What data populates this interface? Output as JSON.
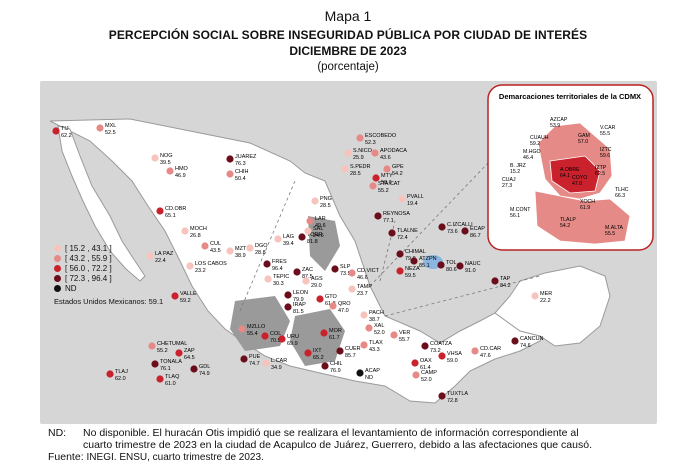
{
  "header": {
    "map_label": "Mapa 1",
    "title": "Percepción social sobre inseguridad pública por ciudad de interés",
    "date": "diciembre de 2023",
    "unit": "(porcentaje)"
  },
  "legend": {
    "items": [
      {
        "label": "[ 15.2 , 43.1 ]",
        "color": "#f6c4bd"
      },
      {
        "label": "[ 43.2 , 55.9 ]",
        "color": "#e58a86"
      },
      {
        "label": "[ 56.0 , 72.2 ]",
        "color": "#c9222d"
      },
      {
        "label": "[ 72.3 , 96.4 ]",
        "color": "#6b0e1b"
      },
      {
        "label": "ND",
        "color": "#111111"
      }
    ],
    "national": "Estados Unidos Mexicanos: 59.1"
  },
  "inset": {
    "title": "Demarcaciones territoriales de la CDMX",
    "areas": [
      {
        "code": "AZCAP",
        "value": "53.9"
      },
      {
        "code": "GAM",
        "value": "57.0"
      },
      {
        "code": "V.CAR",
        "value": "55.5"
      },
      {
        "code": "CUAUH",
        "value": "59.2"
      },
      {
        "code": "M.HGO",
        "value": "46.4"
      },
      {
        "code": "IZTC",
        "value": "59.6"
      },
      {
        "code": "B. JRZ",
        "value": "15.2"
      },
      {
        "code": "A.OBRE",
        "value": "64.1"
      },
      {
        "code": "IZTP",
        "value": "62.5"
      },
      {
        "code": "COYO",
        "value": "47.0"
      },
      {
        "code": "CUAJ",
        "value": "27.3"
      },
      {
        "code": "TLHC",
        "value": "66.3"
      },
      {
        "code": "XOCH",
        "value": "61.9"
      },
      {
        "code": "M.CONT",
        "value": "56.1"
      },
      {
        "code": "TLALP",
        "value": "54.2"
      },
      {
        "code": "M.ALTA",
        "value": "55.5"
      }
    ]
  },
  "cities": [
    {
      "code": "TIJ",
      "value": "62.2",
      "color": "#c9222d"
    },
    {
      "code": "MXL",
      "value": "52.5",
      "color": "#e58a86"
    },
    {
      "code": "NOG",
      "value": "39.5",
      "color": "#f6c4bd"
    },
    {
      "code": "HMO",
      "value": "46.9",
      "color": "#e58a86"
    },
    {
      "code": "JUAREZ",
      "value": "76.3",
      "color": "#6b0e1b"
    },
    {
      "code": "CHIH",
      "value": "50.4",
      "color": "#e58a86"
    },
    {
      "code": "CD.OBR",
      "value": "65.1",
      "color": "#c9222d"
    },
    {
      "code": "MOCH",
      "value": "26.8",
      "color": "#f6c4bd"
    },
    {
      "code": "CUL",
      "value": "43.5",
      "color": "#e58a86"
    },
    {
      "code": "LA PAZ",
      "value": "22.4",
      "color": "#f6c4bd"
    },
    {
      "code": "LOS CABOS",
      "value": "23.2",
      "color": "#f6c4bd"
    },
    {
      "code": "MZT",
      "value": "38.9",
      "color": "#f6c4bd"
    },
    {
      "code": "DGO",
      "value": "28.8",
      "color": "#f6c4bd"
    },
    {
      "code": "LAG",
      "value": "39.4",
      "color": "#f6c4bd"
    },
    {
      "code": "TORR",
      "value": "81.8",
      "color": "#6b0e1b"
    },
    {
      "code": "PNG",
      "value": "28.5",
      "color": "#f6c4bd"
    },
    {
      "code": "ESCOBEDO",
      "value": "52.3",
      "color": "#e58a86"
    },
    {
      "code": "S.NICO",
      "value": "25.9",
      "color": "#f6c4bd"
    },
    {
      "code": "APODACA",
      "value": "43.6",
      "color": "#e58a86"
    },
    {
      "code": "S.PEDR",
      "value": "28.5",
      "color": "#f6c4bd"
    },
    {
      "code": "GPE",
      "value": "54.2",
      "color": "#e58a86"
    },
    {
      "code": "MTY",
      "value": "58.6",
      "color": "#c9222d"
    },
    {
      "code": "STA.CAT",
      "value": "55.2",
      "color": "#e58a86"
    },
    {
      "code": "LAR",
      "value": "49.6",
      "color": "#e58a86"
    },
    {
      "code": "REYNOSA",
      "value": "77.1",
      "color": "#6b0e1b"
    },
    {
      "code": "SAL",
      "value": "24.6",
      "color": "#f6c4bd"
    },
    {
      "code": "FRES",
      "value": "96.4",
      "color": "#6b0e1b"
    },
    {
      "code": "ZAC",
      "value": "87.5",
      "color": "#6b0e1b"
    },
    {
      "code": "TEPIC",
      "value": "30.3",
      "color": "#f6c4bd"
    },
    {
      "code": "AGS",
      "value": "29.0",
      "color": "#f6c4bd"
    },
    {
      "code": "SLP",
      "value": "73.9",
      "color": "#6b0e1b"
    },
    {
      "code": "CD.VICT",
      "value": "46.6",
      "color": "#e58a86"
    },
    {
      "code": "TAMP",
      "value": "23.7",
      "color": "#f6c4bd"
    },
    {
      "code": "LEON",
      "value": "79.9",
      "color": "#6b0e1b"
    },
    {
      "code": "GTO",
      "value": "61.8",
      "color": "#c9222d"
    },
    {
      "code": "IRAP",
      "value": "81.5",
      "color": "#6b0e1b"
    },
    {
      "code": "QRO",
      "value": "47.0",
      "color": "#e58a86"
    },
    {
      "code": "PACH",
      "value": "38.7",
      "color": "#f6c4bd"
    },
    {
      "code": "XAL",
      "value": "52.0",
      "color": "#e58a86"
    },
    {
      "code": "VER",
      "value": "55.7",
      "color": "#e58a86"
    },
    {
      "code": "MZLLO",
      "value": "55.4",
      "color": "#e58a86"
    },
    {
      "code": "COL",
      "value": "70.5",
      "color": "#c9222d"
    },
    {
      "code": "URU",
      "value": "69.9",
      "color": "#c9222d"
    },
    {
      "code": "MOR",
      "value": "61.7",
      "color": "#c9222d"
    },
    {
      "code": "CUER",
      "value": "85.7",
      "color": "#6b0e1b"
    },
    {
      "code": "TLAX",
      "value": "43.3",
      "color": "#e58a86"
    },
    {
      "code": "PUE",
      "value": "74.7",
      "color": "#6b0e1b"
    },
    {
      "code": "L.CAR",
      "value": "34.9",
      "color": "#f6c4bd"
    },
    {
      "code": "IXT",
      "value": "65.2",
      "color": "#c9222d"
    },
    {
      "code": "CHIL",
      "value": "76.9",
      "color": "#6b0e1b"
    },
    {
      "code": "ACAP",
      "value": "ND",
      "color": "#111111"
    },
    {
      "code": "OAX",
      "value": "61.4",
      "color": "#c9222d"
    },
    {
      "code": "COATZA",
      "value": "73.2",
      "color": "#6b0e1b"
    },
    {
      "code": "VHSA",
      "value": "59.0",
      "color": "#c9222d"
    },
    {
      "code": "CD.CAR",
      "value": "47.6",
      "color": "#e58a86"
    },
    {
      "code": "CAMP",
      "value": "52.0",
      "color": "#e58a86"
    },
    {
      "code": "TUXTLA",
      "value": "72.8",
      "color": "#6b0e1b"
    },
    {
      "code": "TAP",
      "value": "84.2",
      "color": "#6b0e1b"
    },
    {
      "code": "MER",
      "value": "22.2",
      "color": "#f6c4bd"
    },
    {
      "code": "CANCUN",
      "value": "74.6",
      "color": "#6b0e1b"
    },
    {
      "code": "CHETUMAL",
      "value": "55.2",
      "color": "#e58a86"
    },
    {
      "code": "ZAP",
      "value": "64.5",
      "color": "#c9222d"
    },
    {
      "code": "GDL",
      "value": "74.9",
      "color": "#6b0e1b"
    },
    {
      "code": "TONALA",
      "value": "76.1",
      "color": "#6b0e1b"
    },
    {
      "code": "TLAQ",
      "value": "61.0",
      "color": "#c9222d"
    },
    {
      "code": "TLAJ",
      "value": "62.0",
      "color": "#c9222d"
    },
    {
      "code": "PVALL",
      "value": "19.4",
      "color": "#f6c4bd"
    },
    {
      "code": "TLALNE",
      "value": "72.4",
      "color": "#6b0e1b"
    },
    {
      "code": "C.IZCALLI",
      "value": "73.6",
      "color": "#6b0e1b"
    },
    {
      "code": "ECAP",
      "value": "86.7",
      "color": "#6b0e1b"
    },
    {
      "code": "CHIMAL",
      "value": "79.9",
      "color": "#6b0e1b"
    },
    {
      "code": "ATZPN",
      "value": "85.1",
      "color": "#6b0e1b"
    },
    {
      "code": "TOL",
      "value": "80.6",
      "color": "#6b0e1b"
    },
    {
      "code": "NAUC",
      "value": "91.0",
      "color": "#6b0e1b"
    },
    {
      "code": "NEZA",
      "value": "59.5",
      "color": "#c9222d"
    },
    {
      "code": "VALLE",
      "value": "59.2",
      "color": "#c9222d"
    }
  ],
  "footer": {
    "nd_key": "ND:",
    "nd_line1": "No disponible. El huracán Otis impidió que se realizara el levantamiento de información correspondiente al",
    "nd_line2": "cuarto trimestre de 2023 en la ciudad de Acapulco de Juárez, Guerrero, debido a las afectaciones que causó.",
    "source_key": "Fuente:",
    "source": "INEGI. ENSU, cuarto trimestre de 2023."
  }
}
